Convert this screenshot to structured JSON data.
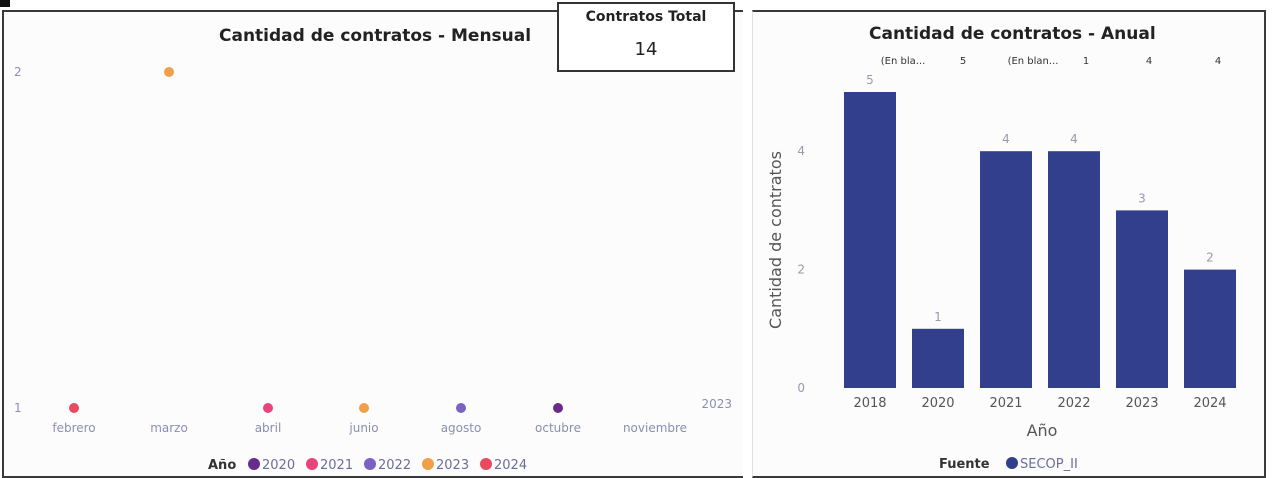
{
  "monthly_panel": {
    "title": "Cantidad de contratos - Mensual",
    "legend_title": "Año",
    "overflow_label": "2023"
  },
  "kpi": {
    "label": "Contratos Total",
    "value": "14"
  },
  "annual_panel": {
    "title": "Cantidad de contratos - Anual",
    "legend_title": "Fuente",
    "legend_item": "SECOP_II",
    "top_labels": [
      "(En bla...",
      "5",
      "(En blan...",
      "1",
      "4",
      "4"
    ]
  },
  "colors": {
    "2020": "#6a2c8a",
    "2021": "#e8437a",
    "2022": "#7b61c4",
    "2023": "#f0a04b",
    "2024": "#e84a5f",
    "bar": "#323f8c"
  },
  "chart_data": [
    {
      "type": "scatter",
      "title": "Cantidad de contratos - Mensual",
      "categories": [
        "febrero",
        "marzo",
        "abril",
        "junio",
        "agosto",
        "octubre",
        "noviembre"
      ],
      "y_ticks": [
        "1",
        "2"
      ],
      "ylim": [
        1,
        2
      ],
      "legend": {
        "title": "Año",
        "position": "bottom",
        "items": [
          "2020",
          "2021",
          "2022",
          "2023",
          "2024"
        ]
      },
      "points": [
        {
          "month": "febrero",
          "year": "2024",
          "value": 1
        },
        {
          "month": "marzo",
          "year": "2023",
          "value": 2
        },
        {
          "month": "abril",
          "year": "2021",
          "value": 1
        },
        {
          "month": "junio",
          "year": "2023",
          "value": 1
        },
        {
          "month": "agosto",
          "year": "2022",
          "value": 1
        },
        {
          "month": "octubre",
          "year": "2020",
          "value": 1
        }
      ]
    },
    {
      "type": "bar",
      "title": "Cantidad de contratos - Anual",
      "categories": [
        "2018",
        "2020",
        "2021",
        "2022",
        "2023",
        "2024"
      ],
      "values": [
        5,
        1,
        4,
        4,
        3,
        2
      ],
      "xlabel": "Año",
      "ylabel": "Cantidad de contratos",
      "y_ticks": [
        "0",
        "2",
        "4"
      ],
      "ylim": [
        0,
        5
      ],
      "legend": {
        "title": "Fuente",
        "position": "bottom",
        "items": [
          "SECOP_II"
        ]
      }
    }
  ]
}
